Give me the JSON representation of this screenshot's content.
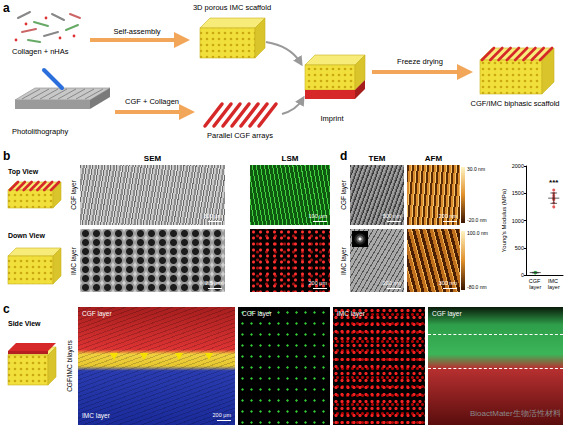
{
  "panel_a": {
    "label": "a",
    "input_top": "Collagen + nHAs",
    "step_top": "Self-assembly",
    "product_top": "3D porous IMC scaffold",
    "input_bottom": "Photolithography",
    "step_bottom": "CGF + Collagen",
    "product_bottom": "Parallel CGF arrays",
    "imprint": "Imprint",
    "freeze": "Freeze drying",
    "result": "CGF/IMC biphasic scaffold"
  },
  "panel_b": {
    "label": "b",
    "top_view": "Top View",
    "down_view": "Down View",
    "columns": [
      "SEM",
      "LSM"
    ],
    "rows": [
      "CGF layer",
      "IMC layer"
    ],
    "scale_bars": [
      [
        "300 μm",
        "100 μm"
      ],
      [
        "2.5 μm",
        "200 μm"
      ]
    ]
  },
  "panel_c": {
    "label": "c",
    "side_view": "Side View",
    "row_label": "CGF/IMC bilayers",
    "images": [
      {
        "labels": [
          "CGF layer",
          "IMC layer"
        ],
        "scale_bar": "200 μm"
      },
      {
        "labels": [
          "CGF layer"
        ]
      },
      {
        "labels": [
          "IMC layer"
        ]
      },
      {
        "labels": [
          "CGF layer"
        ]
      }
    ]
  },
  "panel_d": {
    "label": "d",
    "columns": [
      "TEM",
      "AFM"
    ],
    "rows": [
      "CGF layer",
      "IMC layer"
    ],
    "scale_bars": [
      [
        "500 nm",
        "200 nm"
      ],
      [
        "200 nm",
        "300 nm"
      ]
    ],
    "afm_colorbars": [
      [
        "30.0 nm",
        "-20.0 nm"
      ],
      [
        "100.0 nm",
        "-80.0 nm"
      ]
    ]
  },
  "watermark": "BioactMater生物活性材料",
  "chart_data": {
    "type": "scatter",
    "ylabel": "Young's Modulus (MPa)",
    "categories": [
      "CGF layer",
      "IMC layer"
    ],
    "values": [
      [
        38,
        42,
        45,
        47,
        50,
        44,
        41
      ],
      [
        1250,
        1320,
        1380,
        1420,
        1460,
        1500,
        1560,
        1400
      ]
    ],
    "means": [
      44,
      1410
    ],
    "sds": [
      4,
      95
    ],
    "colors": [
      "#2fb84a",
      "#e03030"
    ],
    "marker": "circle",
    "ylim": [
      0,
      2000
    ],
    "yticks": [
      0,
      500,
      1000,
      1500,
      2000
    ],
    "grid": false,
    "annotation": {
      "text": "***",
      "category": "IMC layer"
    }
  }
}
